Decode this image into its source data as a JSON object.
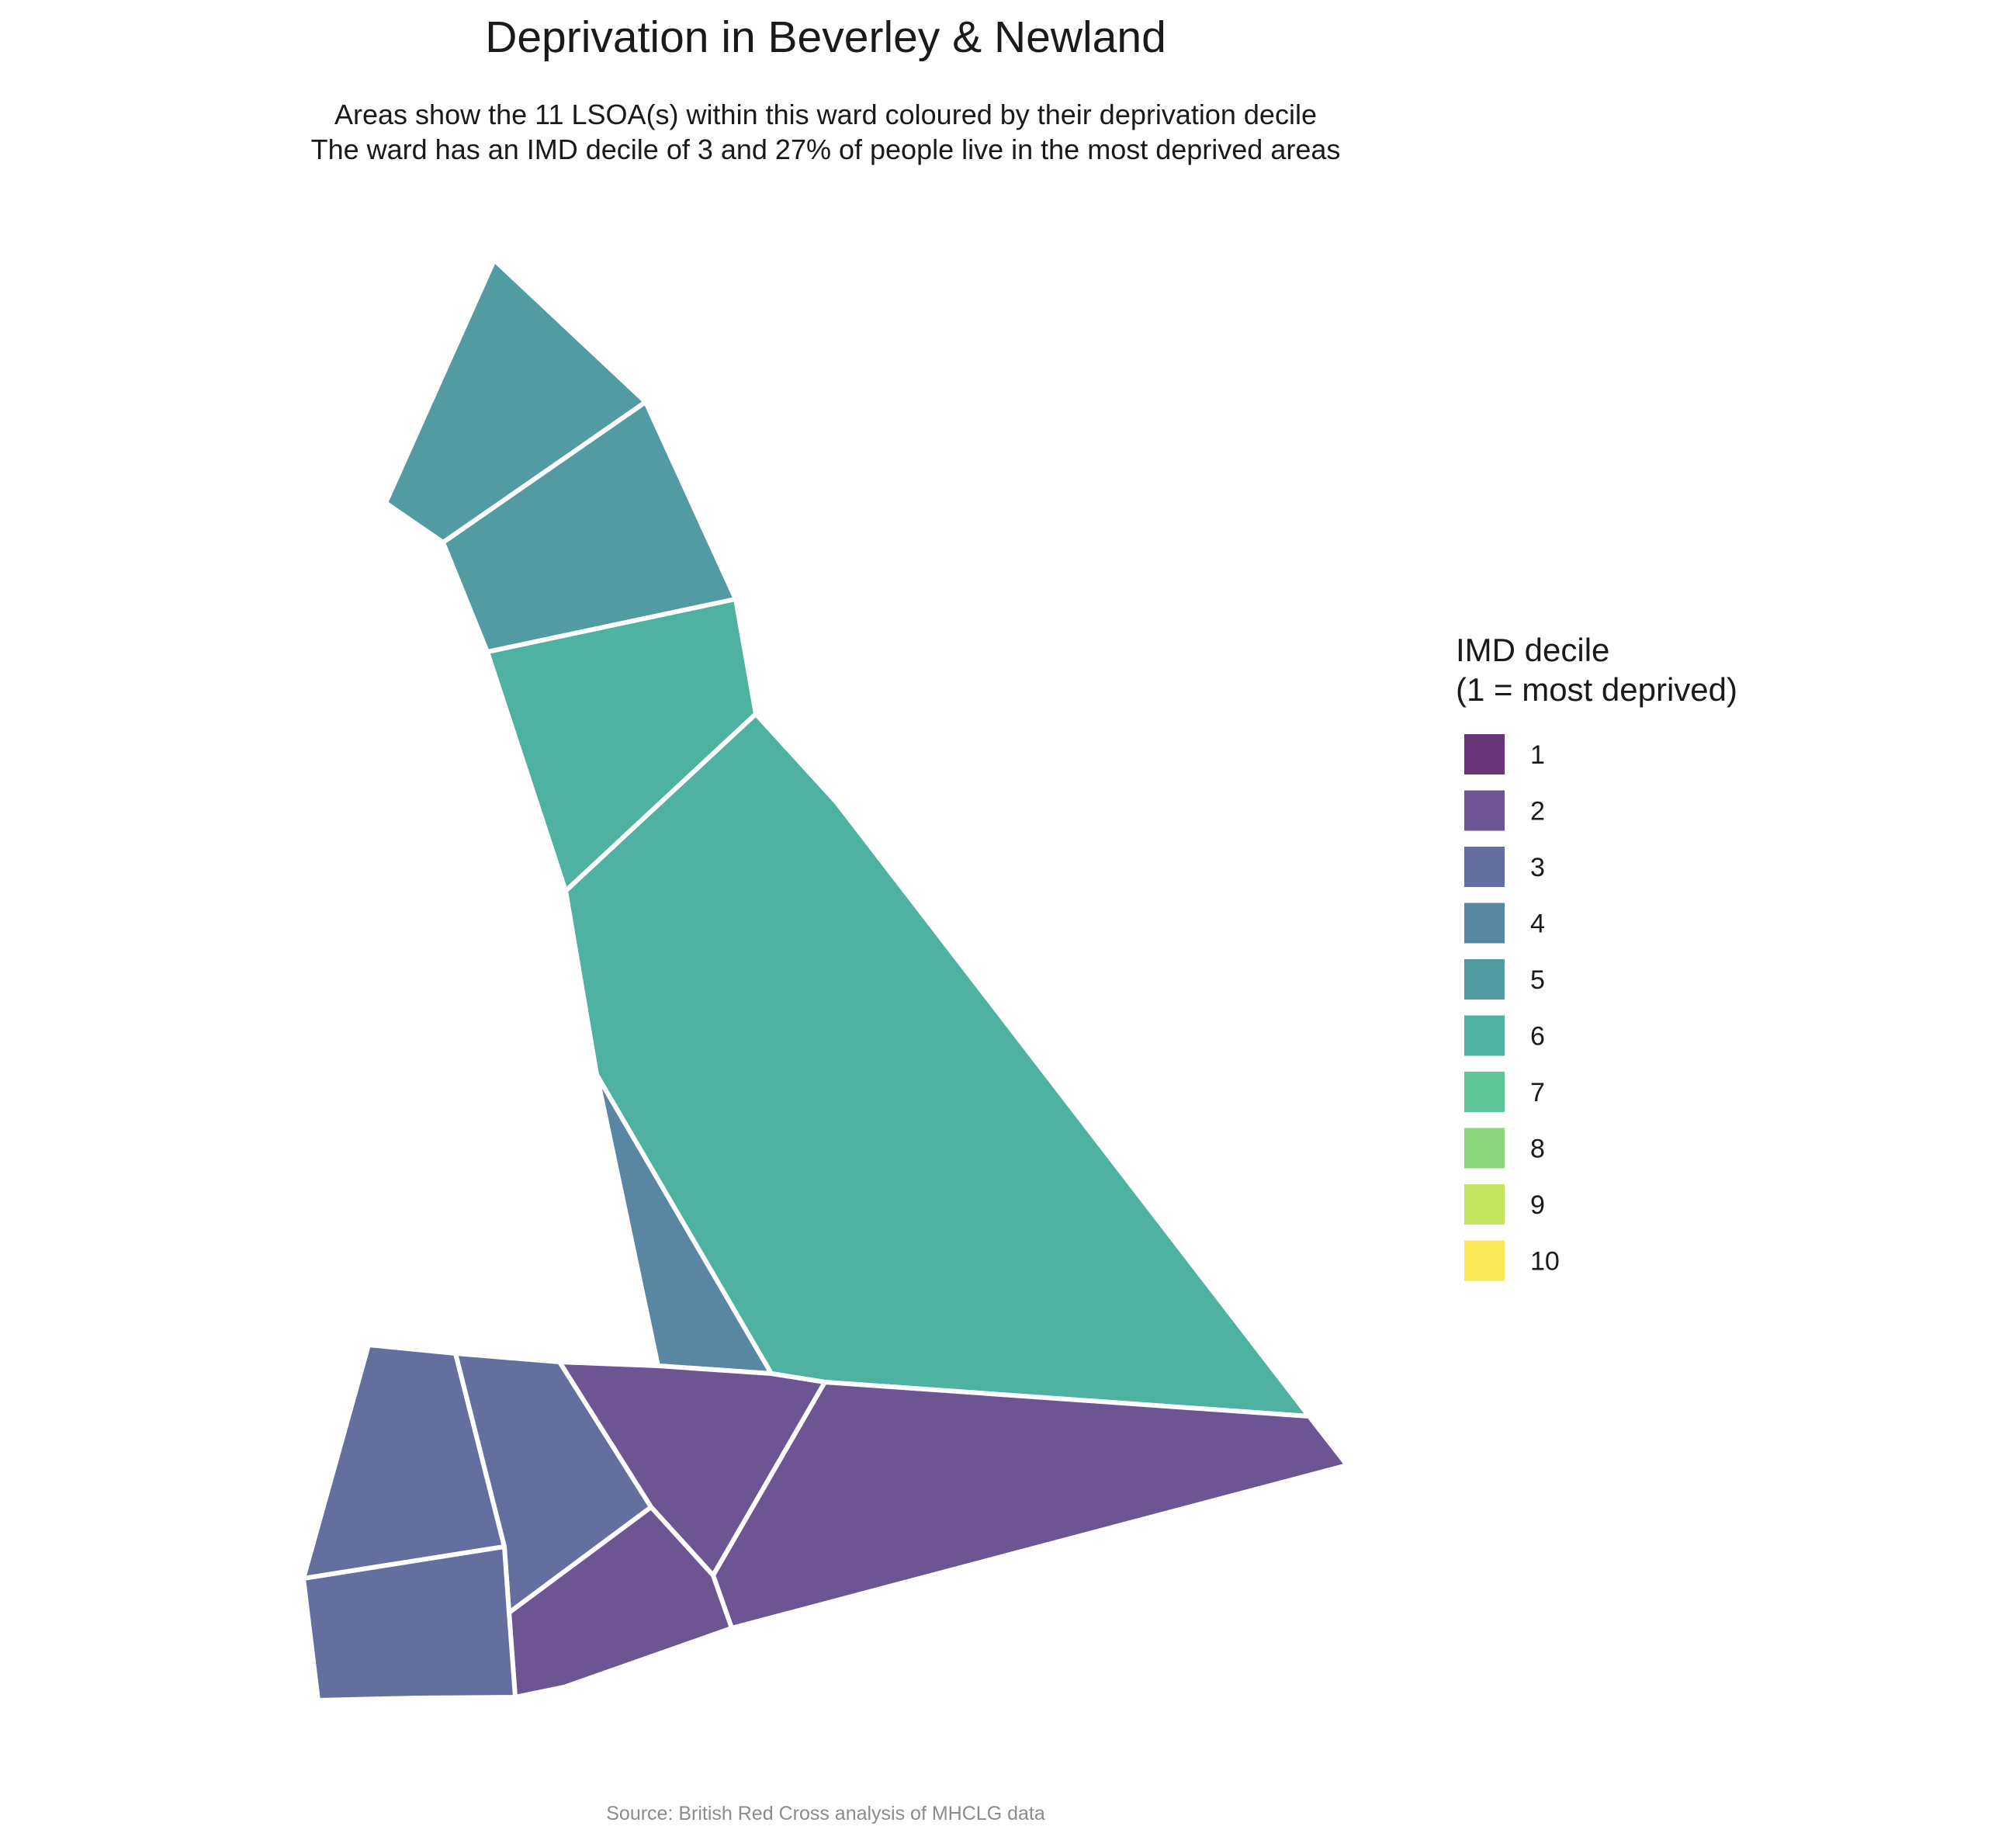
{
  "title": "Deprivation in Beverley & Newland",
  "subtitle_line1": "Areas show the 11 LSOA(s) within this ward coloured by their deprivation decile",
  "subtitle_line2": "The ward has an IMD decile of 3 and 27% of people live in the most deprived areas",
  "caption": "Source: British Red Cross analysis of MHCLG data",
  "legend": {
    "title_line1": "IMD decile",
    "title_line2": "(1 = most deprived)",
    "items": [
      {
        "label": "1",
        "color": "#6a3578"
      },
      {
        "label": "2",
        "color": "#6d5594"
      },
      {
        "label": "3",
        "color": "#646f9f"
      },
      {
        "label": "4",
        "color": "#5986a3"
      },
      {
        "label": "5",
        "color": "#529ba2"
      },
      {
        "label": "6",
        "color": "#4fb1a0"
      },
      {
        "label": "7",
        "color": "#5ec596"
      },
      {
        "label": "8",
        "color": "#8dd67d"
      },
      {
        "label": "9",
        "color": "#c4e35e"
      },
      {
        "label": "10",
        "color": "#fbe957"
      }
    ]
  },
  "areas": [
    {
      "id": "north-tip",
      "decile": 5
    },
    {
      "id": "north-second",
      "decile": 5
    },
    {
      "id": "north-third",
      "decile": 6
    },
    {
      "id": "east-large",
      "decile": 6
    },
    {
      "id": "central-strip",
      "decile": 4
    },
    {
      "id": "south-central",
      "decile": 2
    },
    {
      "id": "south-east",
      "decile": 2
    },
    {
      "id": "south-middle-lower",
      "decile": 2
    },
    {
      "id": "south-west-upper",
      "decile": 3
    },
    {
      "id": "south-middle-upper",
      "decile": 3
    },
    {
      "id": "south-west-lower",
      "decile": 3
    }
  ]
}
